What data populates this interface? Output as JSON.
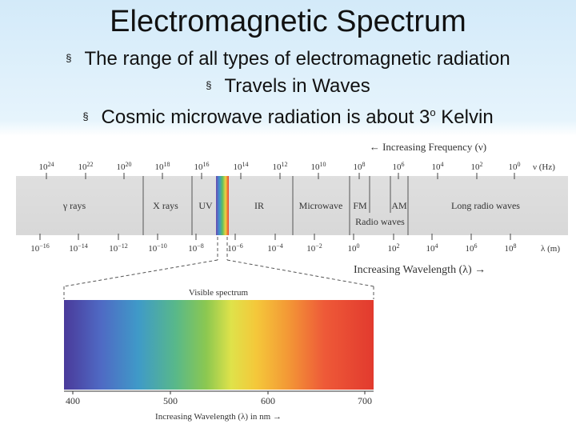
{
  "title": "Electromagnetic Spectrum",
  "bullets": [
    {
      "text": "The range of all types of electromagnetic radiation"
    },
    {
      "text": "Travels in Waves"
    },
    {
      "text": "Cosmic microwave radiation is about 3",
      "sup": "o",
      "suffix": " Kelvin"
    }
  ],
  "bullet_marker": "§",
  "spectrum": {
    "freq_arrow_label": "← Increasing Frequency (ν)",
    "freq_unit": "ν (Hz)",
    "freq_ticks": [
      {
        "base": "10",
        "exp": "24"
      },
      {
        "base": "10",
        "exp": "22"
      },
      {
        "base": "10",
        "exp": "20"
      },
      {
        "base": "10",
        "exp": "18"
      },
      {
        "base": "10",
        "exp": "16"
      },
      {
        "base": "10",
        "exp": "14"
      },
      {
        "base": "10",
        "exp": "12"
      },
      {
        "base": "10",
        "exp": "10"
      },
      {
        "base": "10",
        "exp": "8"
      },
      {
        "base": "10",
        "exp": "6"
      },
      {
        "base": "10",
        "exp": "4"
      },
      {
        "base": "10",
        "exp": "2"
      },
      {
        "base": "10",
        "exp": "0"
      }
    ],
    "bands": [
      "γ rays",
      "X rays",
      "UV",
      "IR",
      "Microwave",
      "FM",
      "AM",
      "Long radio waves"
    ],
    "radio_label": "Radio waves",
    "wave_ticks": [
      {
        "base": "10",
        "exp": "−16"
      },
      {
        "base": "10",
        "exp": "−14"
      },
      {
        "base": "10",
        "exp": "−12"
      },
      {
        "base": "10",
        "exp": "−10"
      },
      {
        "base": "10",
        "exp": "−8"
      },
      {
        "base": "10",
        "exp": "−6"
      },
      {
        "base": "10",
        "exp": "−4"
      },
      {
        "base": "10",
        "exp": "−2"
      },
      {
        "base": "10",
        "exp": "0"
      },
      {
        "base": "10",
        "exp": "2"
      },
      {
        "base": "10",
        "exp": "4"
      },
      {
        "base": "10",
        "exp": "6"
      },
      {
        "base": "10",
        "exp": "8"
      }
    ],
    "wave_unit": "λ (m)",
    "wave_arrow_label": "Increasing Wavelength (λ) →",
    "visible_title": "Visible spectrum",
    "visible_ticks": [
      "400",
      "500",
      "600",
      "700"
    ],
    "visible_axis_label": "Increasing Wavelength (λ) in nm →"
  }
}
